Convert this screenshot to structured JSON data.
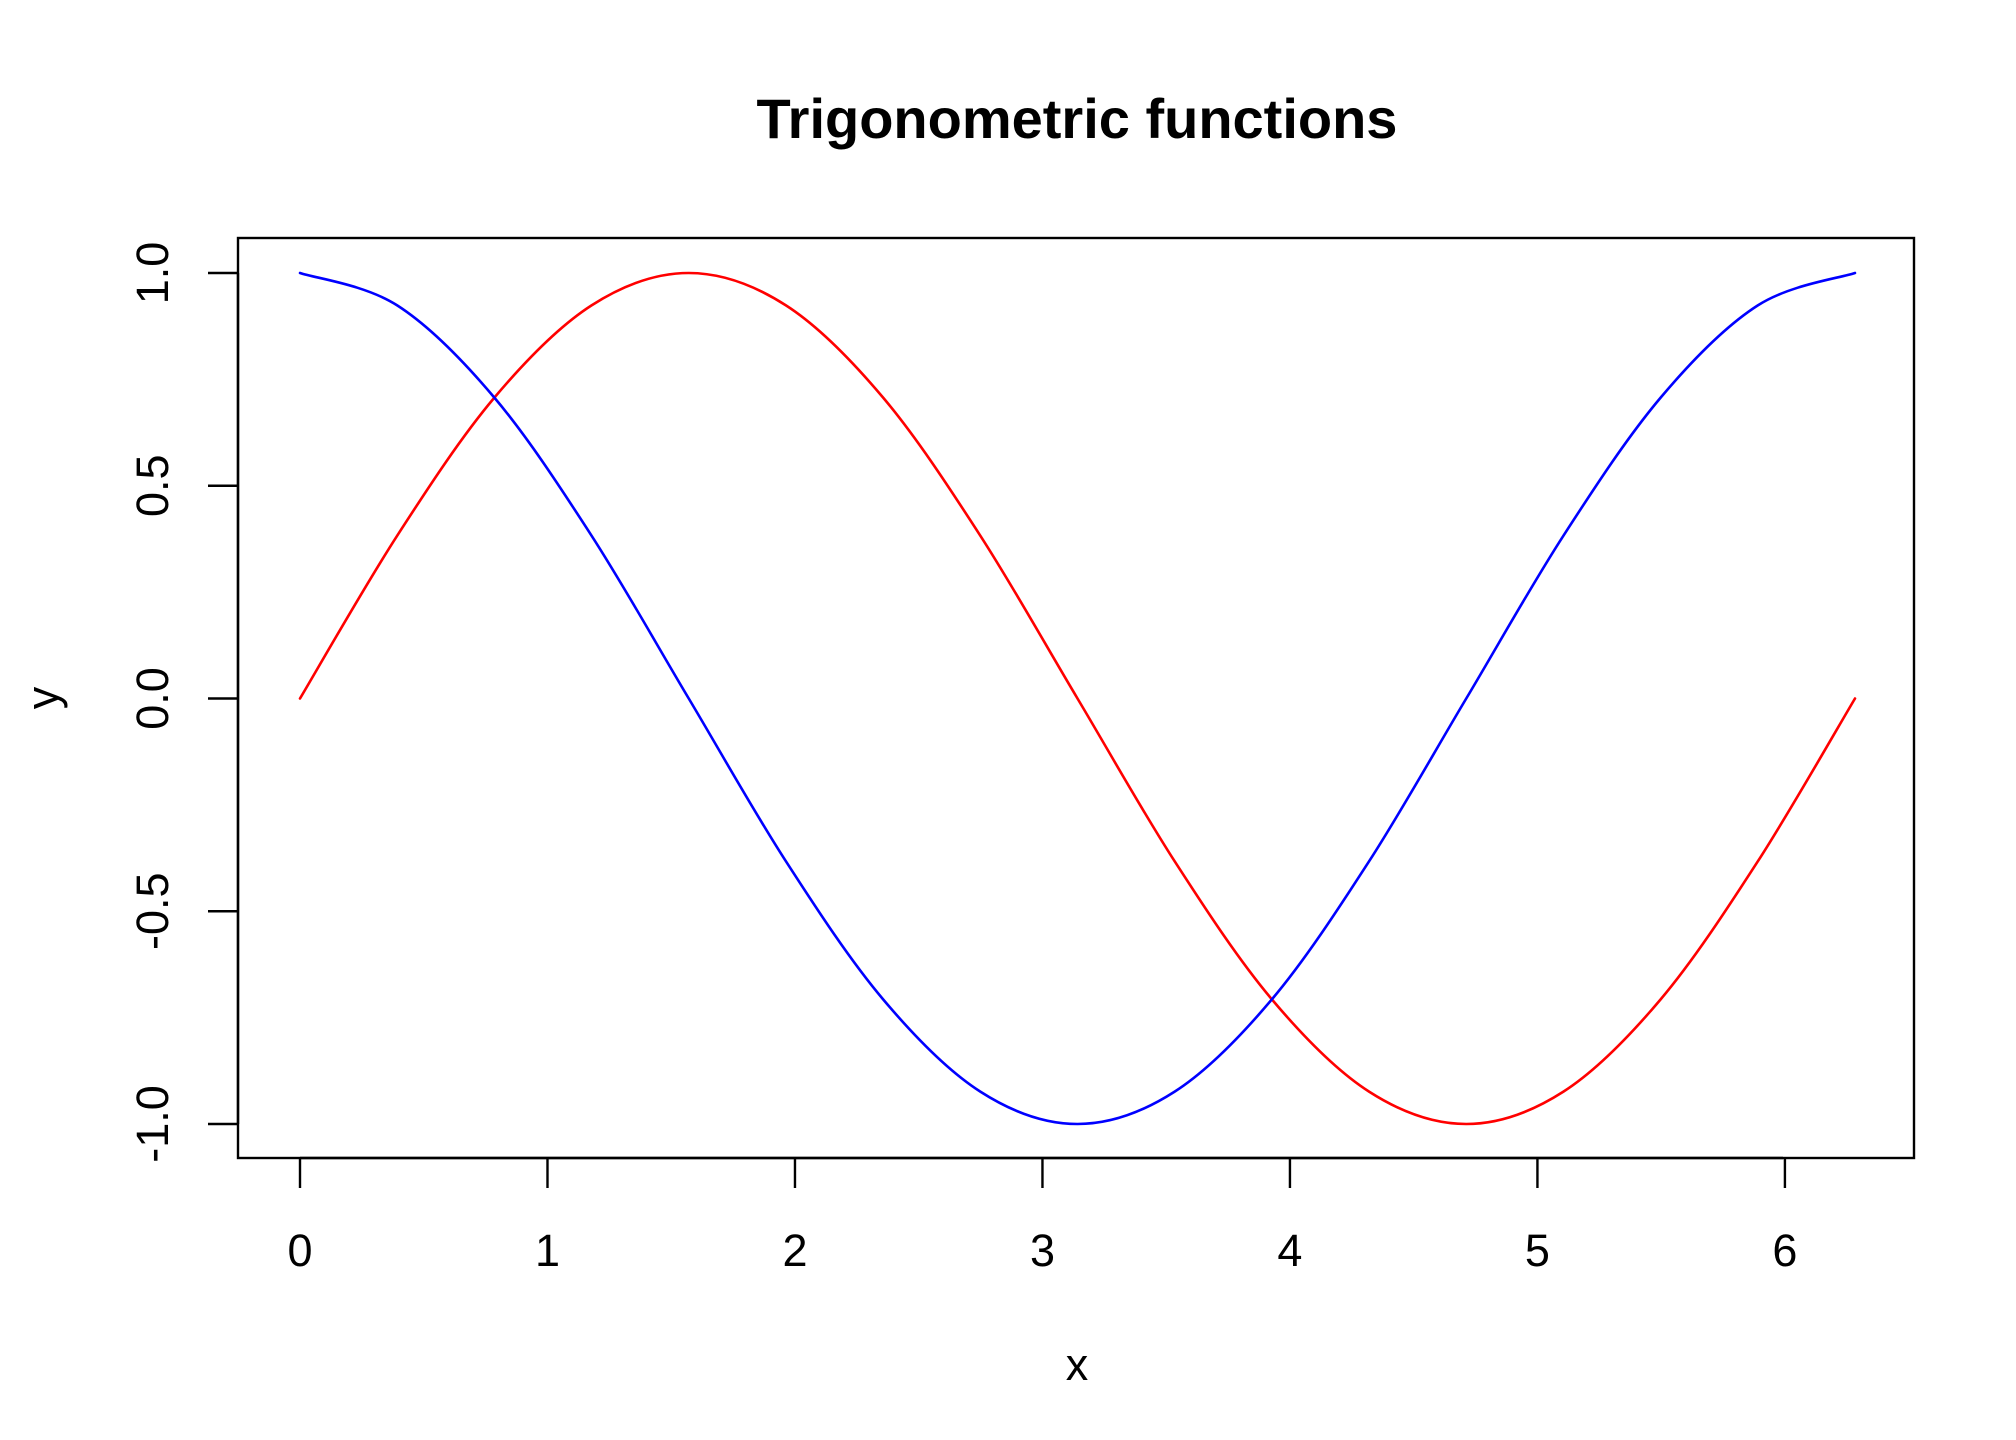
{
  "chart_data": {
    "type": "line",
    "title": "Trigonometric functions",
    "xlabel": "x",
    "ylabel": "y",
    "xlim": [
      0,
      6.283185307179586
    ],
    "ylim": [
      -1,
      1
    ],
    "x_ticks": [
      "0",
      "1",
      "2",
      "3",
      "4",
      "5",
      "6"
    ],
    "y_ticks": [
      "-1.0",
      "-0.5",
      "0.0",
      "0.5",
      "1.0"
    ],
    "grid": false,
    "legend": "none",
    "x": [
      0,
      0.3927,
      0.7854,
      1.1781,
      1.5708,
      1.9635,
      2.3562,
      2.7489,
      3.1416,
      3.5343,
      3.927,
      4.3197,
      4.7124,
      5.1051,
      5.4978,
      5.8905,
      6.2832
    ],
    "series": [
      {
        "color": "#ff0000",
        "values": [
          0,
          0.3827,
          0.7071,
          0.9239,
          1,
          0.9239,
          0.7071,
          0.3827,
          0,
          -0.3827,
          -0.7071,
          -0.9239,
          -1,
          -0.9239,
          -0.7071,
          -0.3827,
          0
        ]
      },
      {
        "color": "#0000ff",
        "values": [
          1,
          0.9239,
          0.7071,
          0.3827,
          0,
          -0.3827,
          -0.7071,
          -0.9239,
          -1,
          -0.9239,
          -0.7071,
          -0.3827,
          0,
          0.3827,
          0.7071,
          0.9239,
          1
        ]
      }
    ]
  }
}
